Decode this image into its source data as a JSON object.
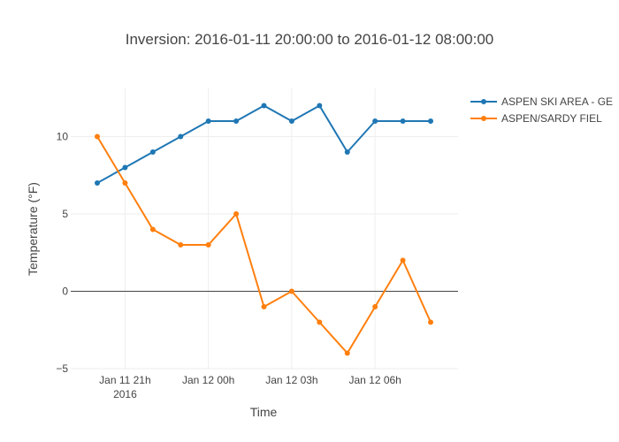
{
  "chart_data": {
    "type": "line",
    "title": "Inversion: 2016-01-11 20:00:00 to 2016-01-12 08:00:00",
    "xlabel": "Time",
    "ylabel": "Temperature (°F)",
    "x": [
      "2016-01-11 20:00",
      "2016-01-11 21:00",
      "2016-01-11 22:00",
      "2016-01-11 23:00",
      "2016-01-12 00:00",
      "2016-01-12 01:00",
      "2016-01-12 02:00",
      "2016-01-12 03:00",
      "2016-01-12 04:00",
      "2016-01-12 05:00",
      "2016-01-12 06:00",
      "2016-01-12 07:00",
      "2016-01-12 08:00"
    ],
    "series": [
      {
        "name": "ASPEN SKI AREA - GE",
        "color": "#1f77b4",
        "values": [
          7,
          8,
          9,
          10,
          11,
          11,
          12,
          11,
          12,
          9,
          11,
          11,
          11
        ]
      },
      {
        "name": "ASPEN/SARDY FIEL",
        "color": "#ff7f0e",
        "values": [
          10,
          7,
          4,
          3,
          3,
          5,
          -1,
          0,
          -2,
          -4,
          -1,
          2,
          -2
        ]
      }
    ],
    "ylim": [
      -5,
      13
    ],
    "yticks": [
      {
        "value": -5,
        "label": "−5"
      },
      {
        "value": 0,
        "label": "0"
      },
      {
        "value": 5,
        "label": "5"
      },
      {
        "value": 10,
        "label": "10"
      }
    ],
    "xticks": [
      {
        "value": "2016-01-11 21:00",
        "label": "Jan 11 21h",
        "sublabel": "2016"
      },
      {
        "value": "2016-01-12 00:00",
        "label": "Jan 12 00h",
        "sublabel": ""
      },
      {
        "value": "2016-01-12 03:00",
        "label": "Jan 12 03h",
        "sublabel": ""
      },
      {
        "value": "2016-01-12 06:00",
        "label": "Jan 12 06h",
        "sublabel": ""
      }
    ],
    "grid": true,
    "legend_position": "top-right"
  }
}
